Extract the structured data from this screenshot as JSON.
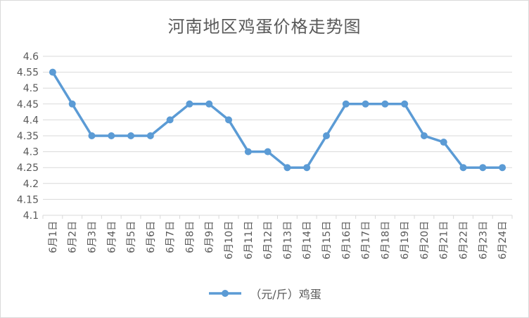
{
  "chart_data": {
    "type": "line",
    "title": "河南地区鸡蛋价格走势图",
    "categories": [
      "6月1日",
      "6月2日",
      "6月3日",
      "6月4日",
      "6月5日",
      "6月6日",
      "6月7日",
      "6月8日",
      "6月9日",
      "6月10日",
      "6月11日",
      "6月12日",
      "6月13日",
      "6月14日",
      "6月15日",
      "6月16日",
      "6月17日",
      "6月18日",
      "6月19日",
      "6月20日",
      "6月21日",
      "6月22日",
      "6月23日",
      "6月24日"
    ],
    "series": [
      {
        "name": "（元/斤）鸡蛋",
        "values": [
          4.55,
          4.45,
          4.35,
          4.35,
          4.35,
          4.35,
          4.4,
          4.45,
          4.45,
          4.4,
          4.3,
          4.3,
          4.25,
          4.25,
          4.35,
          4.45,
          4.45,
          4.45,
          4.45,
          4.35,
          4.33,
          4.25,
          4.25,
          4.25
        ]
      }
    ],
    "yticks": [
      "4.1",
      "4.15",
      "4.2",
      "4.25",
      "4.3",
      "4.35",
      "4.4",
      "4.45",
      "4.5",
      "4.55",
      "4.6"
    ],
    "ylim": [
      4.1,
      4.6
    ],
    "xlabel": "",
    "ylabel": "",
    "grid": true,
    "legend_position": "bottom",
    "colors": {
      "series": "#5b9bd5",
      "grid": "#d9d9d9",
      "text": "#595959"
    }
  }
}
